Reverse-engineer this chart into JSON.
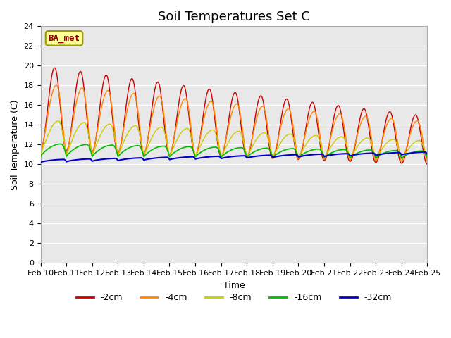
{
  "title": "Soil Temperatures Set C",
  "xlabel": "Time",
  "ylabel": "Soil Temperature (C)",
  "ylim": [
    0,
    24
  ],
  "colors": {
    "-2cm": "#cc0000",
    "-4cm": "#ff8800",
    "-8cm": "#cccc00",
    "-16cm": "#00bb00",
    "-32cm": "#0000cc"
  },
  "legend_label": "BA_met",
  "legend_box_facecolor": "#ffff99",
  "legend_box_edge": "#999900",
  "plot_bg": "#e8e8e8",
  "title_fontsize": 13,
  "label_fontsize": 9,
  "tick_fontsize": 8,
  "x_tick_labels": [
    "Feb 10",
    "Feb 11",
    "Feb 12",
    "Feb 13",
    "Feb 14",
    "Feb 15",
    "Feb 16",
    "Feb 17",
    "Feb 18",
    "Feb 19",
    "Feb 20",
    "Feb 21",
    "Feb 22",
    "Feb 23",
    "Feb 24",
    "Feb 25"
  ]
}
